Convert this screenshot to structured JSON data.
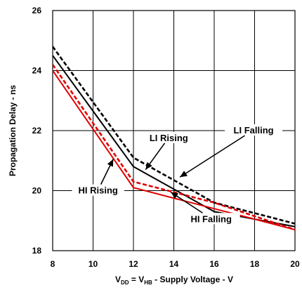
{
  "chart_data": {
    "type": "line",
    "title": "",
    "xlabel_parts": [
      "V",
      "DD",
      " = V",
      "HB",
      " - Supply Voltage - V"
    ],
    "ylabel": "Propagation Delay - ns",
    "xlim": [
      8,
      20
    ],
    "ylim": [
      18,
      26
    ],
    "xticks": [
      "8",
      "10",
      "12",
      "14",
      "16",
      "18",
      "20"
    ],
    "yticks": [
      "18",
      "20",
      "22",
      "24",
      "26"
    ],
    "grid": true,
    "series": [
      {
        "name": "LI Rising",
        "color": "#000000",
        "dashed": false,
        "x": [
          8,
          12,
          16,
          20
        ],
        "y": [
          24.5,
          20.8,
          19.3,
          18.8
        ]
      },
      {
        "name": "LI Falling",
        "color": "#000000",
        "dashed": true,
        "x": [
          8,
          12,
          16,
          20
        ],
        "y": [
          24.8,
          21.1,
          19.6,
          18.9
        ]
      },
      {
        "name": "HI Rising",
        "color": "#e00000",
        "dashed": true,
        "x": [
          8,
          12,
          16,
          20
        ],
        "y": [
          24.2,
          20.3,
          19.6,
          18.7
        ]
      },
      {
        "name": "HI Falling",
        "color": "#e00000",
        "dashed": false,
        "x": [
          8,
          12,
          16,
          20
        ],
        "y": [
          24.0,
          20.1,
          19.4,
          18.7
        ]
      }
    ],
    "annotations": [
      {
        "label": "LI Rising",
        "tx": 13.75,
        "ty": 21.7,
        "ax": 12.6,
        "ay": 20.7
      },
      {
        "label": "LI Falling",
        "tx": 17.95,
        "ty": 21.95,
        "ax": 14.3,
        "ay": 20.45
      },
      {
        "label": "HI Rising",
        "tx": 10.25,
        "ty": 19.95,
        "ax": 11.0,
        "ay": 21.05
      },
      {
        "label": "HI Falling",
        "tx": 15.85,
        "ty": 19.0,
        "ax": 13.85,
        "ay": 19.95
      }
    ]
  }
}
